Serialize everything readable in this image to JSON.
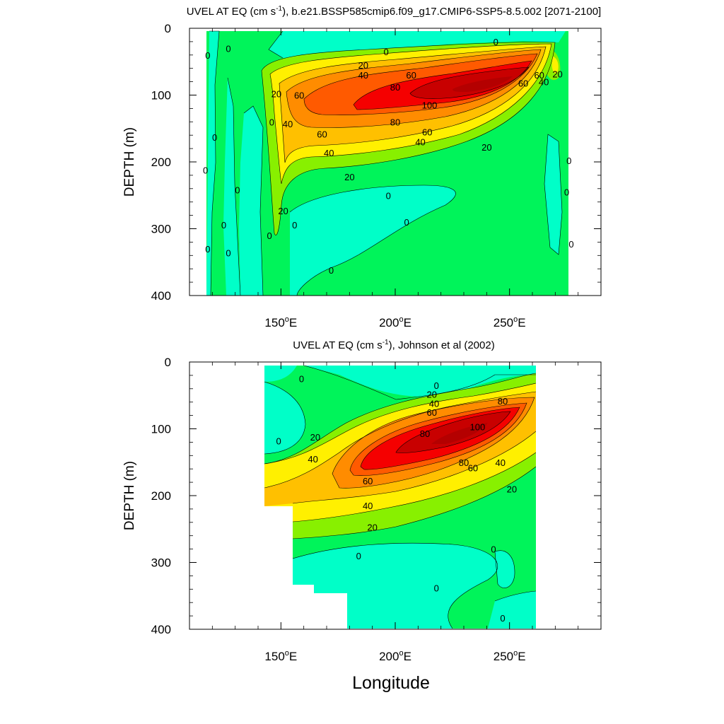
{
  "chart_data": [
    {
      "type": "contour",
      "title": "UVEL AT EQ (cm s-1), b.e21.BSSP585cmip6.f09_g17.CMIP6-SSP5-8.5.002 [2071-2100]",
      "title_pre": "UVEL AT EQ (cm s",
      "title_sup": "-1",
      "title_post": "), b.e21.BSSP585cmip6.f09_g17.CMIP6-SSP5-8.5.002 [2071-2100]",
      "ylabel": "DEPTH (m)",
      "xlabel": "",
      "xlim": [
        110,
        290
      ],
      "ylim": [
        400,
        0
      ],
      "data_lon_range": [
        117,
        279
      ],
      "yticks": [
        "0",
        "100",
        "200",
        "300",
        "400"
      ],
      "xticks": [
        {
          "value": 150,
          "label": "150",
          "deg": "o",
          "suffix": "E"
        },
        {
          "value": 200,
          "label": "200",
          "deg": "o",
          "suffix": "E"
        },
        {
          "value": 250,
          "label": "250",
          "deg": "o",
          "suffix": "E"
        }
      ],
      "contour_interval": 10,
      "undercurrent_core": {
        "lon": 235,
        "depth": 95,
        "max": 110
      },
      "contour_labels": [
        {
          "text": "0",
          "lon": 196,
          "depth": 35
        },
        {
          "text": "0",
          "lon": 244,
          "depth": 20
        },
        {
          "text": "0",
          "lon": 118,
          "depth": 40
        },
        {
          "text": "0",
          "lon": 127,
          "depth": 30
        },
        {
          "text": "20",
          "lon": 186,
          "depth": 55
        },
        {
          "text": "40",
          "lon": 186,
          "depth": 70
        },
        {
          "text": "60",
          "lon": 207,
          "depth": 70
        },
        {
          "text": "60",
          "lon": 158,
          "depth": 100
        },
        {
          "text": "80",
          "lon": 200,
          "depth": 88
        },
        {
          "text": "100",
          "lon": 215,
          "depth": 115
        },
        {
          "text": "80",
          "lon": 200,
          "depth": 140
        },
        {
          "text": "60",
          "lon": 214,
          "depth": 155
        },
        {
          "text": "40",
          "lon": 211,
          "depth": 170
        },
        {
          "text": "60",
          "lon": 168,
          "depth": 158
        },
        {
          "text": "40",
          "lon": 171,
          "depth": 186
        },
        {
          "text": "20",
          "lon": 240,
          "depth": 178
        },
        {
          "text": "20",
          "lon": 180,
          "depth": 222
        },
        {
          "text": "20",
          "lon": 148,
          "depth": 98
        },
        {
          "text": "40",
          "lon": 153,
          "depth": 143
        },
        {
          "text": "0",
          "lon": 146,
          "depth": 140
        },
        {
          "text": "0",
          "lon": 121,
          "depth": 163
        },
        {
          "text": "0",
          "lon": 117,
          "depth": 212
        },
        {
          "text": "0",
          "lon": 131,
          "depth": 242
        },
        {
          "text": "0",
          "lon": 125,
          "depth": 294
        },
        {
          "text": "0",
          "lon": 118,
          "depth": 330
        },
        {
          "text": "0",
          "lon": 127,
          "depth": 336
        },
        {
          "text": "20",
          "lon": 151,
          "depth": 273
        },
        {
          "text": "0",
          "lon": 156,
          "depth": 294
        },
        {
          "text": "0",
          "lon": 145,
          "depth": 310
        },
        {
          "text": "0",
          "lon": 197,
          "depth": 250
        },
        {
          "text": "0",
          "lon": 205,
          "depth": 290
        },
        {
          "text": "0",
          "lon": 172,
          "depth": 362
        },
        {
          "text": "60",
          "lon": 263,
          "depth": 70
        },
        {
          "text": "40",
          "lon": 265,
          "depth": 80
        },
        {
          "text": "20",
          "lon": 271,
          "depth": 68
        },
        {
          "text": "60",
          "lon": 256,
          "depth": 82
        },
        {
          "text": "0",
          "lon": 276,
          "depth": 198
        },
        {
          "text": "0",
          "lon": 275,
          "depth": 245
        },
        {
          "text": "0",
          "lon": 277,
          "depth": 323
        }
      ]
    },
    {
      "type": "contour",
      "title": "UVEL AT EQ (cm s-1), Johnson et al (2002)",
      "title_pre": "UVEL AT EQ (cm s",
      "title_sup": "-1",
      "title_post": "), Johnson et al (2002)",
      "ylabel": "DEPTH (m)",
      "xlabel": "Longitude",
      "xlim": [
        110,
        290
      ],
      "ylim": [
        400,
        0
      ],
      "data_lon_range": [
        143,
        265
      ],
      "yticks": [
        "0",
        "100",
        "200",
        "300",
        "400"
      ],
      "xticks": [
        {
          "value": 150,
          "label": "150",
          "deg": "o",
          "suffix": "E"
        },
        {
          "value": 200,
          "label": "200",
          "deg": "o",
          "suffix": "E"
        },
        {
          "value": 250,
          "label": "250",
          "deg": "o",
          "suffix": "E"
        }
      ],
      "contour_interval": 10,
      "undercurrent_core": {
        "lon": 232,
        "depth": 105,
        "max": 105
      },
      "contour_labels": [
        {
          "text": "0",
          "lon": 159,
          "depth": 25
        },
        {
          "text": "0",
          "lon": 149,
          "depth": 118
        },
        {
          "text": "0",
          "lon": 218,
          "depth": 35
        },
        {
          "text": "20",
          "lon": 216,
          "depth": 48
        },
        {
          "text": "40",
          "lon": 217,
          "depth": 62
        },
        {
          "text": "60",
          "lon": 216,
          "depth": 75
        },
        {
          "text": "80",
          "lon": 247,
          "depth": 58
        },
        {
          "text": "80",
          "lon": 213,
          "depth": 107
        },
        {
          "text": "100",
          "lon": 236,
          "depth": 97
        },
        {
          "text": "80",
          "lon": 230,
          "depth": 150
        },
        {
          "text": "60",
          "lon": 234,
          "depth": 158
        },
        {
          "text": "40",
          "lon": 246,
          "depth": 150
        },
        {
          "text": "20",
          "lon": 165,
          "depth": 112
        },
        {
          "text": "40",
          "lon": 164,
          "depth": 145
        },
        {
          "text": "60",
          "lon": 188,
          "depth": 178
        },
        {
          "text": "20",
          "lon": 251,
          "depth": 190
        },
        {
          "text": "40",
          "lon": 188,
          "depth": 215
        },
        {
          "text": "20",
          "lon": 190,
          "depth": 247
        },
        {
          "text": "0",
          "lon": 184,
          "depth": 290
        },
        {
          "text": "0",
          "lon": 243,
          "depth": 280
        },
        {
          "text": "0",
          "lon": 218,
          "depth": 338
        },
        {
          "text": "0",
          "lon": 247,
          "depth": 383
        }
      ]
    }
  ]
}
